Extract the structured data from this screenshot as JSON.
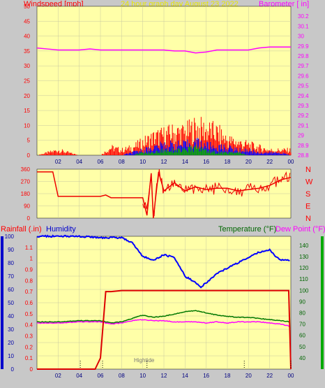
{
  "header": {
    "windspeed_label": "Windspeed [mph]",
    "graph_title": "24 hour graph day   August 23 2022",
    "barometer_label": "Barometer [ in]",
    "rainfall_label": "Rainfall (.in)",
    "humidity_label": "Humidity",
    "temperature_label": "Temperature (°F)",
    "dewpoint_label": "Dew Point (°F)",
    "hightide_label": "Hightide"
  },
  "colors": {
    "background": "#c8c8c8",
    "plot": "#ffffa8",
    "grid": "#c8c8a0",
    "wind": "#ff0000",
    "wind_avg": "#0000ff",
    "wind_low": "#00aa00",
    "barometer": "#ff00ff",
    "direction": "#ee0000",
    "rainfall": "#dd0000",
    "humidity": "#0000ff",
    "temperature": "#007700",
    "dewpoint": "#ff00ff",
    "tide": "#000000",
    "tide_label": "#777777",
    "header_wind": "#ff0000",
    "header_title": "#e8e800",
    "header_baro": "#ff00ff",
    "header_rain": "#ff0000",
    "header_humidity": "#0000cc",
    "header_temp": "#006600",
    "header_dew": "#ff00ff"
  },
  "chart_data": [
    {
      "type": "bar",
      "panel": "wind-barometer",
      "x_ticks": [
        "02",
        "04",
        "06",
        "08",
        "10",
        "12",
        "14",
        "16",
        "18",
        "20",
        "22",
        "00"
      ],
      "ylim_left": [
        0,
        50
      ],
      "y_ticks_left": [
        "0",
        "5",
        "10",
        "15",
        "20",
        "25",
        "30",
        "35",
        "40",
        "45",
        "50"
      ],
      "ylim_right": [
        28.8,
        30.3
      ],
      "y_ticks_right": [
        "28.8",
        "28.9",
        "29",
        "29.1",
        "29.2",
        "29.3",
        "29.4",
        "29.5",
        "29.6",
        "29.7",
        "29.8",
        "29.9",
        "30",
        "30.1",
        "30.2"
      ],
      "grid": true,
      "wind_gust": {
        "x": [
          0,
          1,
          2,
          3,
          4,
          5,
          6,
          7,
          8,
          9,
          10,
          11,
          12,
          13,
          14,
          15,
          16,
          17,
          18,
          19,
          20,
          21,
          22,
          23,
          24
        ],
        "values": [
          0,
          1,
          2,
          1,
          0,
          0,
          0,
          3,
          2,
          3,
          5,
          7,
          8,
          9,
          9,
          11,
          10,
          9,
          6,
          5,
          4,
          3,
          2,
          2,
          2
        ]
      },
      "wind_avg": {
        "x": [
          0,
          1,
          2,
          3,
          4,
          5,
          6,
          7,
          8,
          9,
          10,
          11,
          12,
          13,
          14,
          15,
          16,
          17,
          18,
          19,
          20,
          21,
          22,
          23,
          24
        ],
        "values": [
          0,
          0,
          0,
          0,
          0,
          0,
          0,
          0,
          0,
          1,
          2,
          3,
          4,
          4,
          4,
          5,
          4,
          3,
          3,
          2,
          2,
          1,
          1,
          1,
          0
        ]
      },
      "wind_low": {
        "x": [
          0,
          1,
          2,
          3,
          4,
          5,
          6,
          7,
          8,
          9,
          10,
          11,
          12,
          13,
          14,
          15,
          16,
          17,
          18,
          19,
          20,
          21,
          22,
          23,
          24
        ],
        "values": [
          0,
          0,
          0,
          0,
          0,
          0,
          0,
          0,
          0,
          0,
          1,
          1,
          2,
          2,
          2,
          3,
          2,
          1,
          1,
          1,
          0,
          0,
          0,
          0,
          0
        ]
      },
      "barometer": {
        "x": [
          0,
          1,
          2,
          3,
          4,
          5,
          6,
          7,
          8,
          9,
          10,
          11,
          12,
          13,
          14,
          15,
          16,
          17,
          18,
          19,
          20,
          21,
          22,
          23,
          24
        ],
        "values": [
          29.88,
          29.87,
          29.86,
          29.86,
          29.86,
          29.87,
          29.86,
          29.86,
          29.86,
          29.86,
          29.86,
          29.86,
          29.86,
          29.85,
          29.85,
          29.83,
          29.84,
          29.86,
          29.86,
          29.86,
          29.86,
          29.88,
          29.89,
          29.89,
          29.89
        ]
      }
    },
    {
      "type": "line",
      "panel": "wind-direction",
      "ylim": [
        0,
        360
      ],
      "y_ticks": [
        "0",
        "90",
        "180",
        "270",
        "360"
      ],
      "direction_labels": [
        "N",
        "W",
        "S",
        "E",
        "N"
      ],
      "grid": true,
      "series": {
        "x": [
          0,
          1,
          1.5,
          2,
          3,
          4,
          5,
          6,
          6.5,
          7,
          8,
          9,
          10,
          10.4,
          10.8,
          11,
          11.5,
          12,
          13,
          14,
          15,
          16,
          17,
          18,
          19,
          20,
          21,
          22,
          23,
          24
        ],
        "values": [
          340,
          340,
          340,
          160,
          160,
          160,
          160,
          160,
          170,
          150,
          150,
          150,
          150,
          20,
          330,
          0,
          340,
          200,
          260,
          200,
          230,
          210,
          220,
          220,
          200,
          210,
          220,
          240,
          280,
          300
        ]
      }
    },
    {
      "type": "line",
      "panel": "rain-humidity-temperature",
      "x_ticks": [
        "02",
        "04",
        "06",
        "08",
        "10",
        "12",
        "14",
        "16",
        "18",
        "20",
        "22",
        "00"
      ],
      "ylim_rain": [
        0,
        1.2
      ],
      "y_ticks_rain": [
        "0",
        "0.1",
        "0.2",
        "0.3",
        "0.4",
        "0.5",
        "0.6",
        "0.7",
        "0.8",
        "0.9",
        "1",
        "1.1"
      ],
      "ylim_humidity": [
        0,
        100
      ],
      "y_ticks_humidity": [
        "0",
        "10",
        "20",
        "30",
        "40",
        "50",
        "60",
        "70",
        "80",
        "90",
        "100"
      ],
      "ylim_temp": [
        30,
        148
      ],
      "y_ticks_temp": [
        "40",
        "50",
        "60",
        "70",
        "80",
        "90",
        "100",
        "110",
        "120",
        "130",
        "140"
      ],
      "grid": true,
      "rainfall": {
        "x": [
          0,
          5.5,
          6,
          6.5,
          7,
          8,
          10,
          12,
          14,
          16,
          18,
          20,
          22,
          23.8,
          24
        ],
        "values": [
          0,
          0,
          0.1,
          0.7,
          0.7,
          0.71,
          0.71,
          0.71,
          0.71,
          0.71,
          0.71,
          0.71,
          0.71,
          0.71,
          0
        ]
      },
      "humidity": {
        "x": [
          0,
          2,
          4,
          6,
          7,
          8,
          9,
          10,
          11,
          12,
          13,
          14,
          15,
          15.5,
          16,
          17,
          18,
          19,
          20,
          21,
          22,
          22.5,
          23,
          24
        ],
        "values": [
          100,
          100,
          100,
          99,
          99,
          99,
          95,
          85,
          82,
          86,
          84,
          70,
          65,
          62,
          65,
          72,
          76,
          80,
          84,
          88,
          90,
          85,
          82,
          82
        ]
      },
      "temperature": {
        "x": [
          0,
          2,
          4,
          6,
          7,
          8,
          9,
          10,
          11,
          12,
          13,
          14,
          15,
          16,
          17,
          18,
          19,
          20,
          21,
          22,
          23,
          24
        ],
        "values": [
          72,
          72,
          73,
          73,
          71,
          72,
          75,
          78,
          76,
          77,
          79,
          81,
          82,
          80,
          78,
          77,
          76,
          76,
          75,
          74,
          73,
          72
        ]
      },
      "dewpoint": {
        "x": [
          0,
          2,
          4,
          6,
          7,
          8,
          9,
          10,
          11,
          12,
          13,
          14,
          15,
          16,
          17,
          18,
          19,
          20,
          21,
          22,
          23,
          24
        ],
        "values": [
          71,
          71,
          72,
          72,
          70,
          71,
          73,
          74,
          73,
          73,
          72,
          72,
          72,
          71,
          72,
          71,
          72,
          72,
          72,
          71,
          70,
          68
        ]
      },
      "tide_markers_x": [
        4.1,
        6.2,
        10.4,
        19.6,
        24
      ]
    }
  ]
}
